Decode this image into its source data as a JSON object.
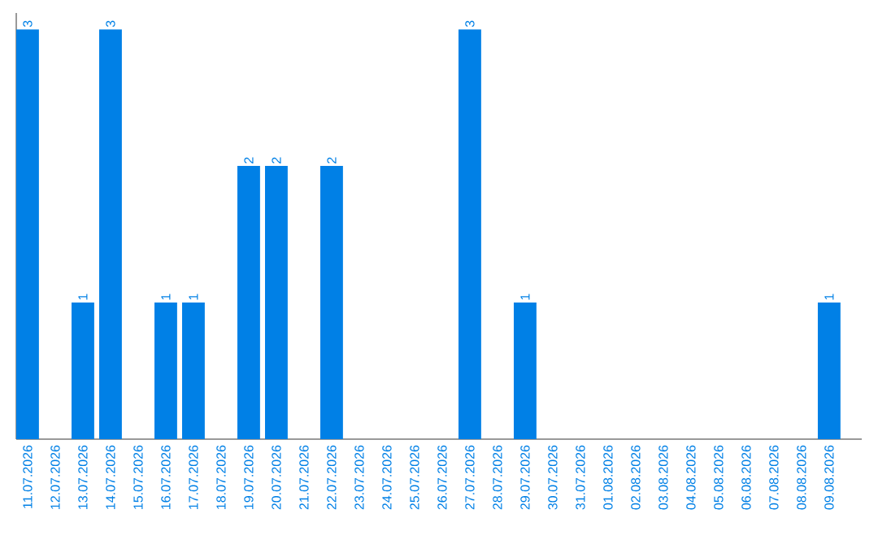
{
  "chart_data": {
    "type": "bar",
    "categories": [
      "11.07.2026",
      "12.07.2026",
      "13.07.2026",
      "14.07.2026",
      "15.07.2026",
      "16.07.2026",
      "17.07.2026",
      "18.07.2026",
      "19.07.2026",
      "20.07.2026",
      "21.07.2026",
      "22.07.2026",
      "23.07.2026",
      "24.07.2026",
      "25.07.2026",
      "26.07.2026",
      "27.07.2026",
      "28.07.2026",
      "29.07.2026",
      "30.07.2026",
      "31.07.2026",
      "01.08.2026",
      "02.08.2026",
      "03.08.2026",
      "04.08.2026",
      "05.08.2026",
      "06.08.2026",
      "07.08.2026",
      "08.08.2026",
      "09.08.2026"
    ],
    "values": [
      3,
      0,
      1,
      3,
      0,
      1,
      1,
      0,
      2,
      2,
      0,
      2,
      0,
      0,
      0,
      0,
      3,
      0,
      1,
      0,
      0,
      0,
      0,
      0,
      0,
      0,
      0,
      0,
      0,
      1
    ],
    "value_labels": [
      "3",
      null,
      "1",
      "3",
      null,
      "1",
      "1",
      null,
      "2",
      "2",
      null,
      "2",
      null,
      null,
      null,
      null,
      "3",
      null,
      "1",
      null,
      null,
      null,
      null,
      null,
      null,
      null,
      null,
      null,
      null,
      "1"
    ],
    "color": "#0080e6"
  }
}
